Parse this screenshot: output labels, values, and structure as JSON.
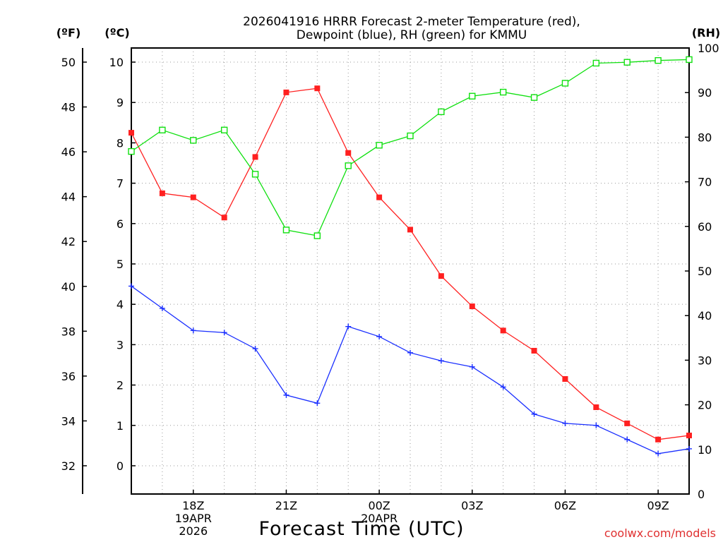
{
  "chart_data": {
    "type": "line",
    "title_line1": "2026041916 HRRR Forecast 2-meter Temperature (red),",
    "title_line2": "Dewpoint (blue), RH (green) for KMMU",
    "xlabel": "Forecast Time (UTC)",
    "credit": "coolwx.com/models",
    "unit_f": "(ºF)",
    "unit_c": "(ºC)",
    "unit_rh": "(RH)",
    "x": [
      16,
      17,
      18,
      19,
      20,
      21,
      22,
      23,
      24,
      25,
      26,
      27,
      28,
      29,
      30,
      31,
      32,
      33,
      34
    ],
    "xlim": [
      16,
      34
    ],
    "x_ticks": [
      {
        "x": 18,
        "lines": [
          "18Z",
          "19APR",
          "2026"
        ]
      },
      {
        "x": 21,
        "lines": [
          "21Z"
        ]
      },
      {
        "x": 24,
        "lines": [
          "00Z",
          "20APR"
        ]
      },
      {
        "x": 27,
        "lines": [
          "03Z"
        ]
      },
      {
        "x": 30,
        "lines": [
          "06Z"
        ]
      },
      {
        "x": 33,
        "lines": [
          "09Z"
        ]
      }
    ],
    "ylim_c": [
      -0.7,
      10.35
    ],
    "yticks_c": [
      "0",
      "1",
      "2",
      "3",
      "4",
      "5",
      "6",
      "7",
      "8",
      "9",
      "10"
    ],
    "yticks_f": [
      "32",
      "34",
      "36",
      "38",
      "40",
      "42",
      "44",
      "46",
      "48",
      "50"
    ],
    "yticks_rh": [
      "0",
      "10",
      "20",
      "30",
      "40",
      "50",
      "60",
      "70",
      "80",
      "90",
      "100"
    ],
    "series": [
      {
        "name": "Temperature",
        "unit": "C",
        "color": "#ff2020",
        "marker": "filled-square",
        "values": [
          8.25,
          6.75,
          6.65,
          6.15,
          7.65,
          9.25,
          9.35,
          7.75,
          6.65,
          5.85,
          4.7,
          3.95,
          3.35,
          2.85,
          2.15,
          1.45,
          1.05,
          0.65,
          0.75
        ]
      },
      {
        "name": "Dewpoint",
        "unit": "C",
        "color": "#1a2fff",
        "marker": "plus",
        "values": [
          4.45,
          3.9,
          3.35,
          3.3,
          2.9,
          1.75,
          1.55,
          3.45,
          3.2,
          2.8,
          2.6,
          2.45,
          1.95,
          1.28,
          1.05,
          1.0,
          0.65,
          0.3,
          0.42
        ]
      },
      {
        "name": "RH",
        "unit": "%",
        "color": "#10e010",
        "marker": "open-square",
        "values": [
          76.8,
          81.6,
          79.3,
          81.6,
          71.7,
          59.2,
          57.9,
          73.6,
          78.2,
          80.3,
          85.7,
          89.2,
          90.1,
          88.9,
          92.1,
          96.6,
          96.8,
          97.2,
          97.4
        ]
      }
    ]
  }
}
